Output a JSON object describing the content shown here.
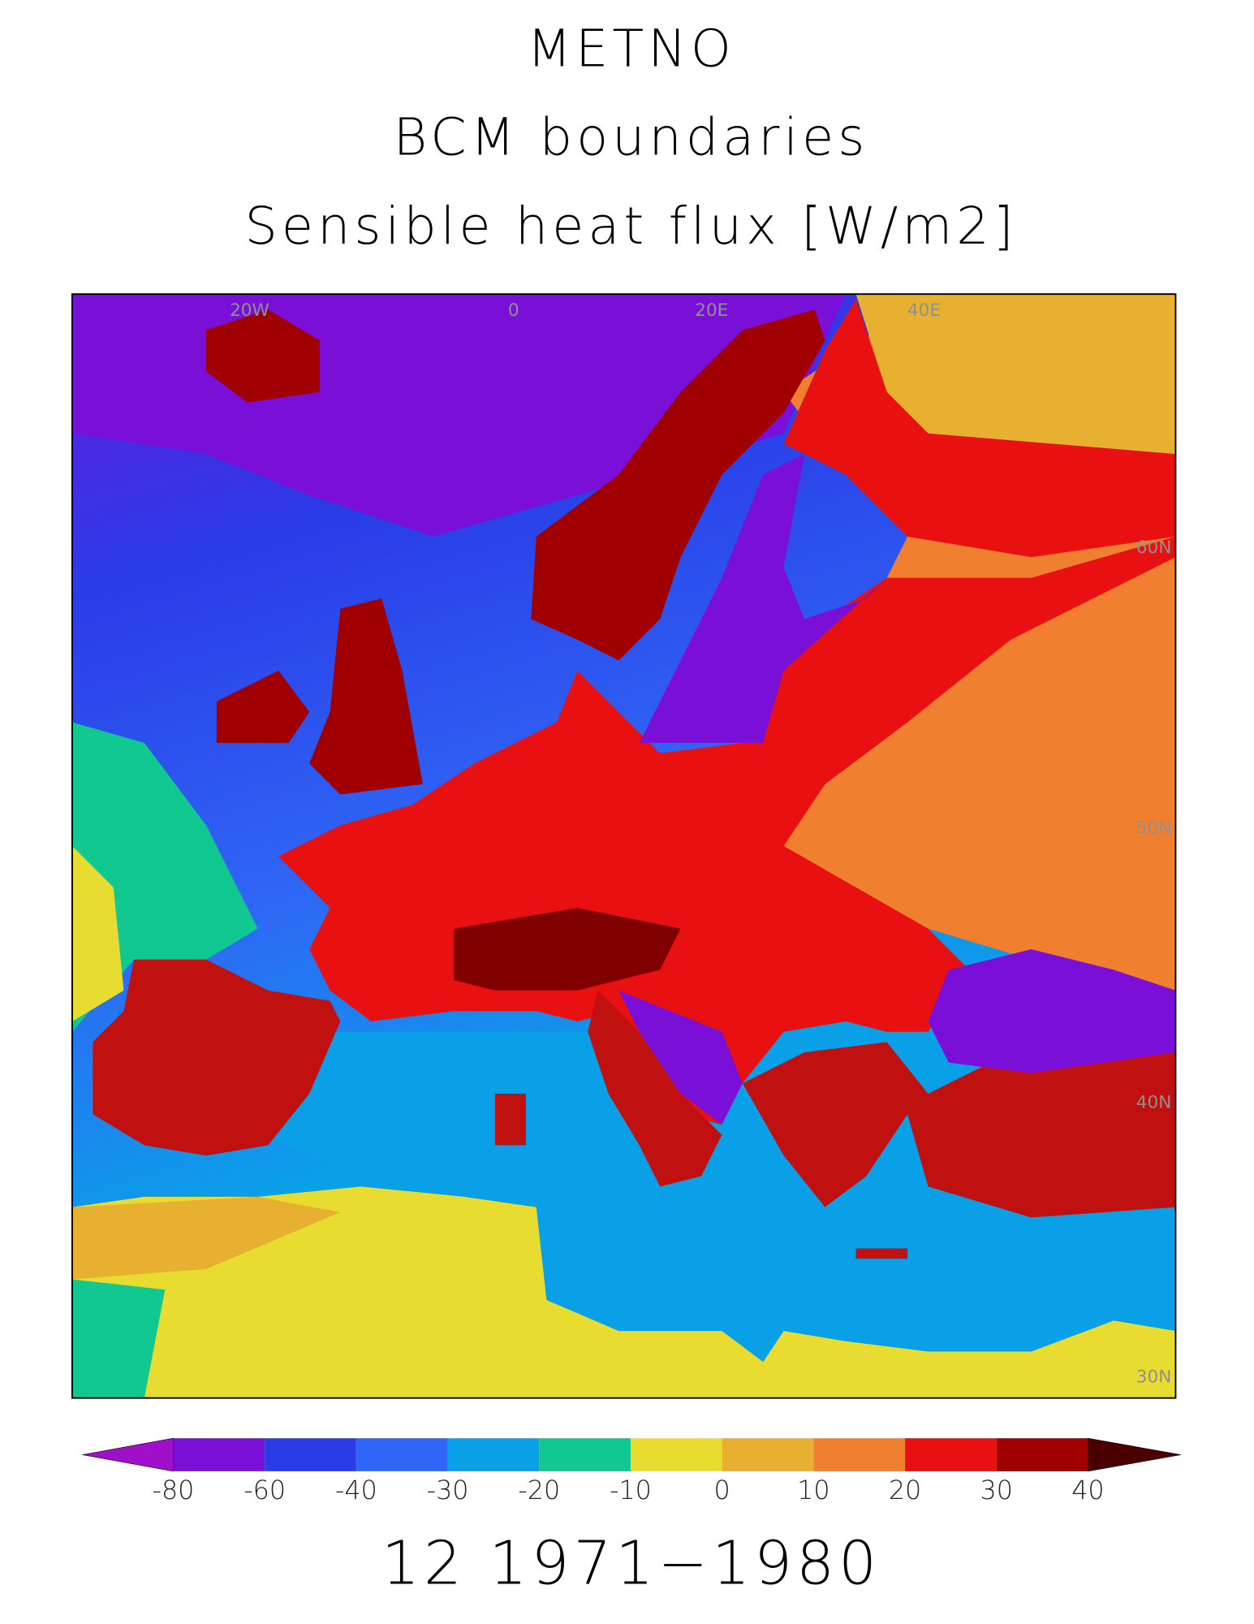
{
  "title_lines": [
    "METNO",
    "BCM boundaries",
    "Sensible heat flux [W/m2]"
  ],
  "map": {
    "labels": [
      "20W",
      "0",
      "20E",
      "40E",
      "60N",
      "50N",
      "40N",
      "30N"
    ]
  },
  "colorbar": {
    "ticks": [
      -80,
      -60,
      -40,
      -30,
      -20,
      -10,
      0,
      10,
      20,
      30,
      40
    ],
    "colors": [
      "#7a10d8",
      "#2a3ce8",
      "#2f66f5",
      "#0aa0e8",
      "#10c890",
      "#e8dc30",
      "#e8b030",
      "#f08030",
      "#e81010",
      "#a00000"
    ],
    "under_color": "#a010c8",
    "over_color": "#4a0000"
  },
  "footer": "12 1971−1980"
}
